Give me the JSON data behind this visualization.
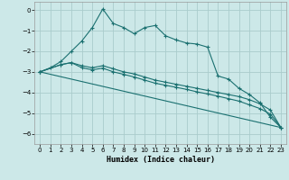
{
  "xlabel": "Humidex (Indice chaleur)",
  "xlim": [
    -0.5,
    23.5
  ],
  "ylim": [
    -6.5,
    0.4
  ],
  "xticks": [
    0,
    1,
    2,
    3,
    4,
    5,
    6,
    7,
    8,
    9,
    10,
    11,
    12,
    13,
    14,
    15,
    16,
    17,
    18,
    19,
    20,
    21,
    22,
    23
  ],
  "yticks": [
    0,
    -1,
    -2,
    -3,
    -4,
    -5,
    -6
  ],
  "bg_color": "#cce8e8",
  "grid_color": "#aacccc",
  "line_color": "#1a7070",
  "lines": [
    {
      "x": [
        0,
        1,
        2,
        3,
        4,
        5,
        6,
        7,
        8,
        9,
        10,
        11,
        12,
        13,
        14,
        15,
        16,
        17,
        18,
        19,
        20,
        21,
        22,
        23
      ],
      "y": [
        -3.0,
        -2.8,
        -2.5,
        -2.0,
        -1.5,
        -0.85,
        0.05,
        -0.65,
        -0.85,
        -1.15,
        -0.85,
        -0.75,
        -1.25,
        -1.45,
        -1.6,
        -1.65,
        -1.8,
        -3.2,
        -3.35,
        -3.8,
        -4.1,
        -4.5,
        -5.2,
        -5.7
      ],
      "marker": true
    },
    {
      "x": [
        0,
        23
      ],
      "y": [
        -3.0,
        -5.7
      ],
      "marker": false
    },
    {
      "x": [
        0,
        2,
        3,
        4,
        5,
        6,
        7,
        8,
        9,
        10,
        11,
        12,
        13,
        14,
        15,
        16,
        17,
        18,
        19,
        20,
        21,
        22,
        23
      ],
      "y": [
        -3.0,
        -2.65,
        -2.55,
        -2.7,
        -2.8,
        -2.7,
        -2.85,
        -3.0,
        -3.1,
        -3.25,
        -3.4,
        -3.5,
        -3.6,
        -3.7,
        -3.8,
        -3.9,
        -4.0,
        -4.1,
        -4.2,
        -4.35,
        -4.55,
        -4.85,
        -5.7
      ],
      "marker": true
    },
    {
      "x": [
        0,
        2,
        3,
        4,
        5,
        6,
        7,
        8,
        9,
        10,
        11,
        12,
        13,
        14,
        15,
        16,
        17,
        18,
        19,
        20,
        21,
        22,
        23
      ],
      "y": [
        -3.0,
        -2.65,
        -2.55,
        -2.8,
        -2.9,
        -2.82,
        -3.0,
        -3.12,
        -3.25,
        -3.4,
        -3.55,
        -3.65,
        -3.75,
        -3.85,
        -3.97,
        -4.07,
        -4.18,
        -4.3,
        -4.42,
        -4.6,
        -4.78,
        -5.05,
        -5.7
      ],
      "marker": true
    }
  ]
}
